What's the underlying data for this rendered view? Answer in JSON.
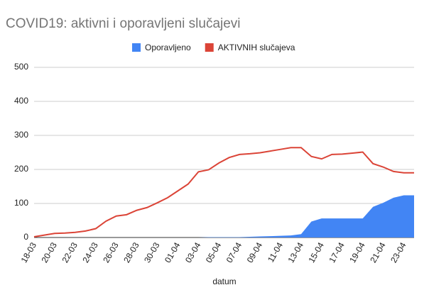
{
  "chart_data": {
    "type": "line",
    "title": "COVID19: aktivni i oporavljeni slučajevi",
    "x_label": "datum",
    "categories": [
      "18-03",
      null,
      "20-03",
      null,
      "22-03",
      null,
      "24-03",
      null,
      "26-03",
      null,
      "28-03",
      null,
      "30-03",
      null,
      "01-04",
      null,
      "03-04",
      null,
      "05-04",
      null,
      "07-04",
      null,
      "09-04",
      null,
      "11-04",
      null,
      "13-04",
      null,
      "15-04",
      null,
      "17-04",
      null,
      "19-04",
      null,
      "21-04",
      null,
      "23-04",
      null
    ],
    "series": [
      {
        "name": "Oporavljeno",
        "type": "area",
        "color": "#4285f4",
        "values": [
          0,
          0,
          0,
          0,
          0,
          0,
          0,
          0,
          0,
          0,
          0,
          0,
          0,
          0,
          0,
          0,
          0,
          1,
          1,
          1,
          1,
          2,
          3,
          4,
          5,
          6,
          10,
          47,
          56,
          56,
          56,
          56,
          56,
          90,
          102,
          117,
          124,
          124
        ]
      },
      {
        "name": "AKTIVNIH slučajeva",
        "type": "line",
        "color": "#db4437",
        "values": [
          2,
          7,
          12,
          13,
          15,
          19,
          26,
          48,
          63,
          67,
          80,
          88,
          102,
          117,
          137,
          157,
          193,
          199,
          219,
          235,
          244,
          246,
          249,
          254,
          259,
          264,
          264,
          238,
          231,
          244,
          245,
          248,
          251,
          217,
          207,
          194,
          190,
          190
        ]
      }
    ],
    "ylim": [
      0,
      500
    ],
    "yticks": [
      0,
      100,
      200,
      300,
      400,
      500
    ],
    "grid": true,
    "legend": "top"
  }
}
